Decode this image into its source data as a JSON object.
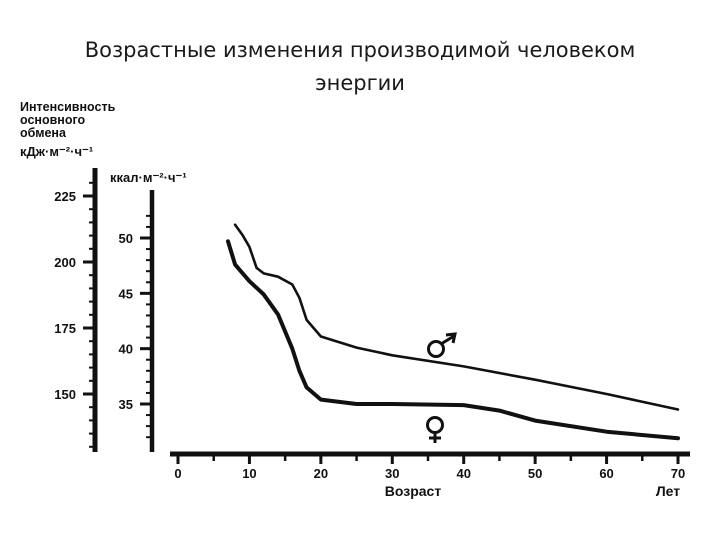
{
  "slide": {
    "title_line1": "Возрастные изменения производимой человеком",
    "title_line2": "энергии"
  },
  "chart_data": {
    "type": "line",
    "title": "Возрастные изменения производимой человеком энергии",
    "ylabel_kj": [
      "Интенсивность",
      "основного",
      "обмена",
      "кДж·м⁻²·ч⁻¹"
    ],
    "ylabel_kcal": "ккал·м⁻²·ч⁻¹",
    "xlabel": "Возраст",
    "xunit": "Лет",
    "x_ticks": [
      0,
      10,
      20,
      30,
      40,
      50,
      60,
      70
    ],
    "y_ticks_kcal": [
      35,
      40,
      45,
      50
    ],
    "y_ticks_kj": [
      150,
      175,
      200,
      225
    ],
    "xlim": [
      0,
      70
    ],
    "ylim_kcal": [
      31.5,
      52.5
    ],
    "grid": false,
    "series": [
      {
        "name": "♂",
        "color": "#111111",
        "x": [
          8,
          9,
          10,
          11,
          12,
          14,
          16,
          17,
          18,
          20,
          25,
          30,
          40,
          50,
          60,
          70
        ],
        "y": [
          51.2,
          50.3,
          49.2,
          47.3,
          46.8,
          46.5,
          45.8,
          44.6,
          42.6,
          41.1,
          40.1,
          39.4,
          38.4,
          37.2,
          35.9,
          34.5
        ]
      },
      {
        "name": "♀",
        "color": "#111111",
        "x": [
          7,
          8,
          10,
          12,
          14,
          16,
          17,
          18,
          20,
          25,
          30,
          40,
          45,
          50,
          60,
          70
        ],
        "y": [
          49.7,
          47.6,
          46.1,
          44.9,
          43.1,
          40.0,
          38.0,
          36.5,
          35.4,
          35.0,
          35.0,
          34.9,
          34.4,
          33.5,
          32.5,
          31.9
        ]
      }
    ]
  }
}
